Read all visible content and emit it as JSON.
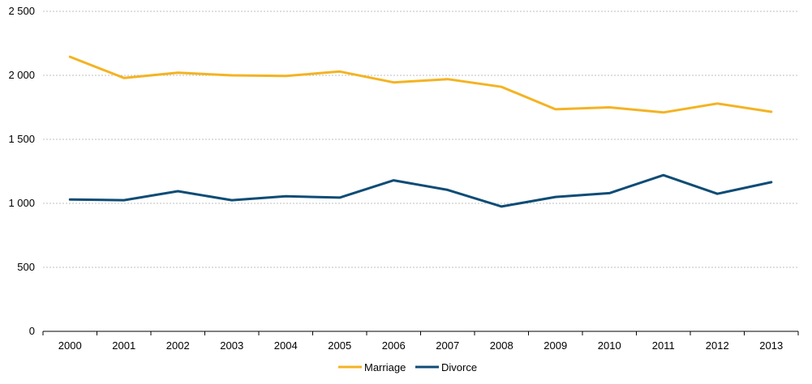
{
  "chart_data": {
    "type": "line",
    "title": "",
    "xlabel": "",
    "ylabel": "",
    "x": [
      "2000",
      "2001",
      "2002",
      "2003",
      "2004",
      "2005",
      "2006",
      "2007",
      "2008",
      "2009",
      "2010",
      "2011",
      "2012",
      "2013"
    ],
    "y_ticks": [
      0,
      500,
      1000,
      1500,
      2000,
      2500
    ],
    "y_tick_labels": [
      "0",
      "500",
      "1 000",
      "1 500",
      "2 000",
      "2 500"
    ],
    "ylim": [
      0,
      2500
    ],
    "grid": true,
    "legend_position": "bottom-center",
    "series": [
      {
        "name": "Marriage",
        "color": "#f4b322",
        "values": [
          2145,
          1980,
          2020,
          2000,
          1995,
          2030,
          1945,
          1970,
          1910,
          1735,
          1750,
          1710,
          1780,
          1715
        ]
      },
      {
        "name": "Divorce",
        "color": "#0e4c75",
        "values": [
          1030,
          1025,
          1095,
          1025,
          1055,
          1045,
          1180,
          1105,
          975,
          1050,
          1080,
          1220,
          1075,
          1165
        ]
      }
    ]
  }
}
